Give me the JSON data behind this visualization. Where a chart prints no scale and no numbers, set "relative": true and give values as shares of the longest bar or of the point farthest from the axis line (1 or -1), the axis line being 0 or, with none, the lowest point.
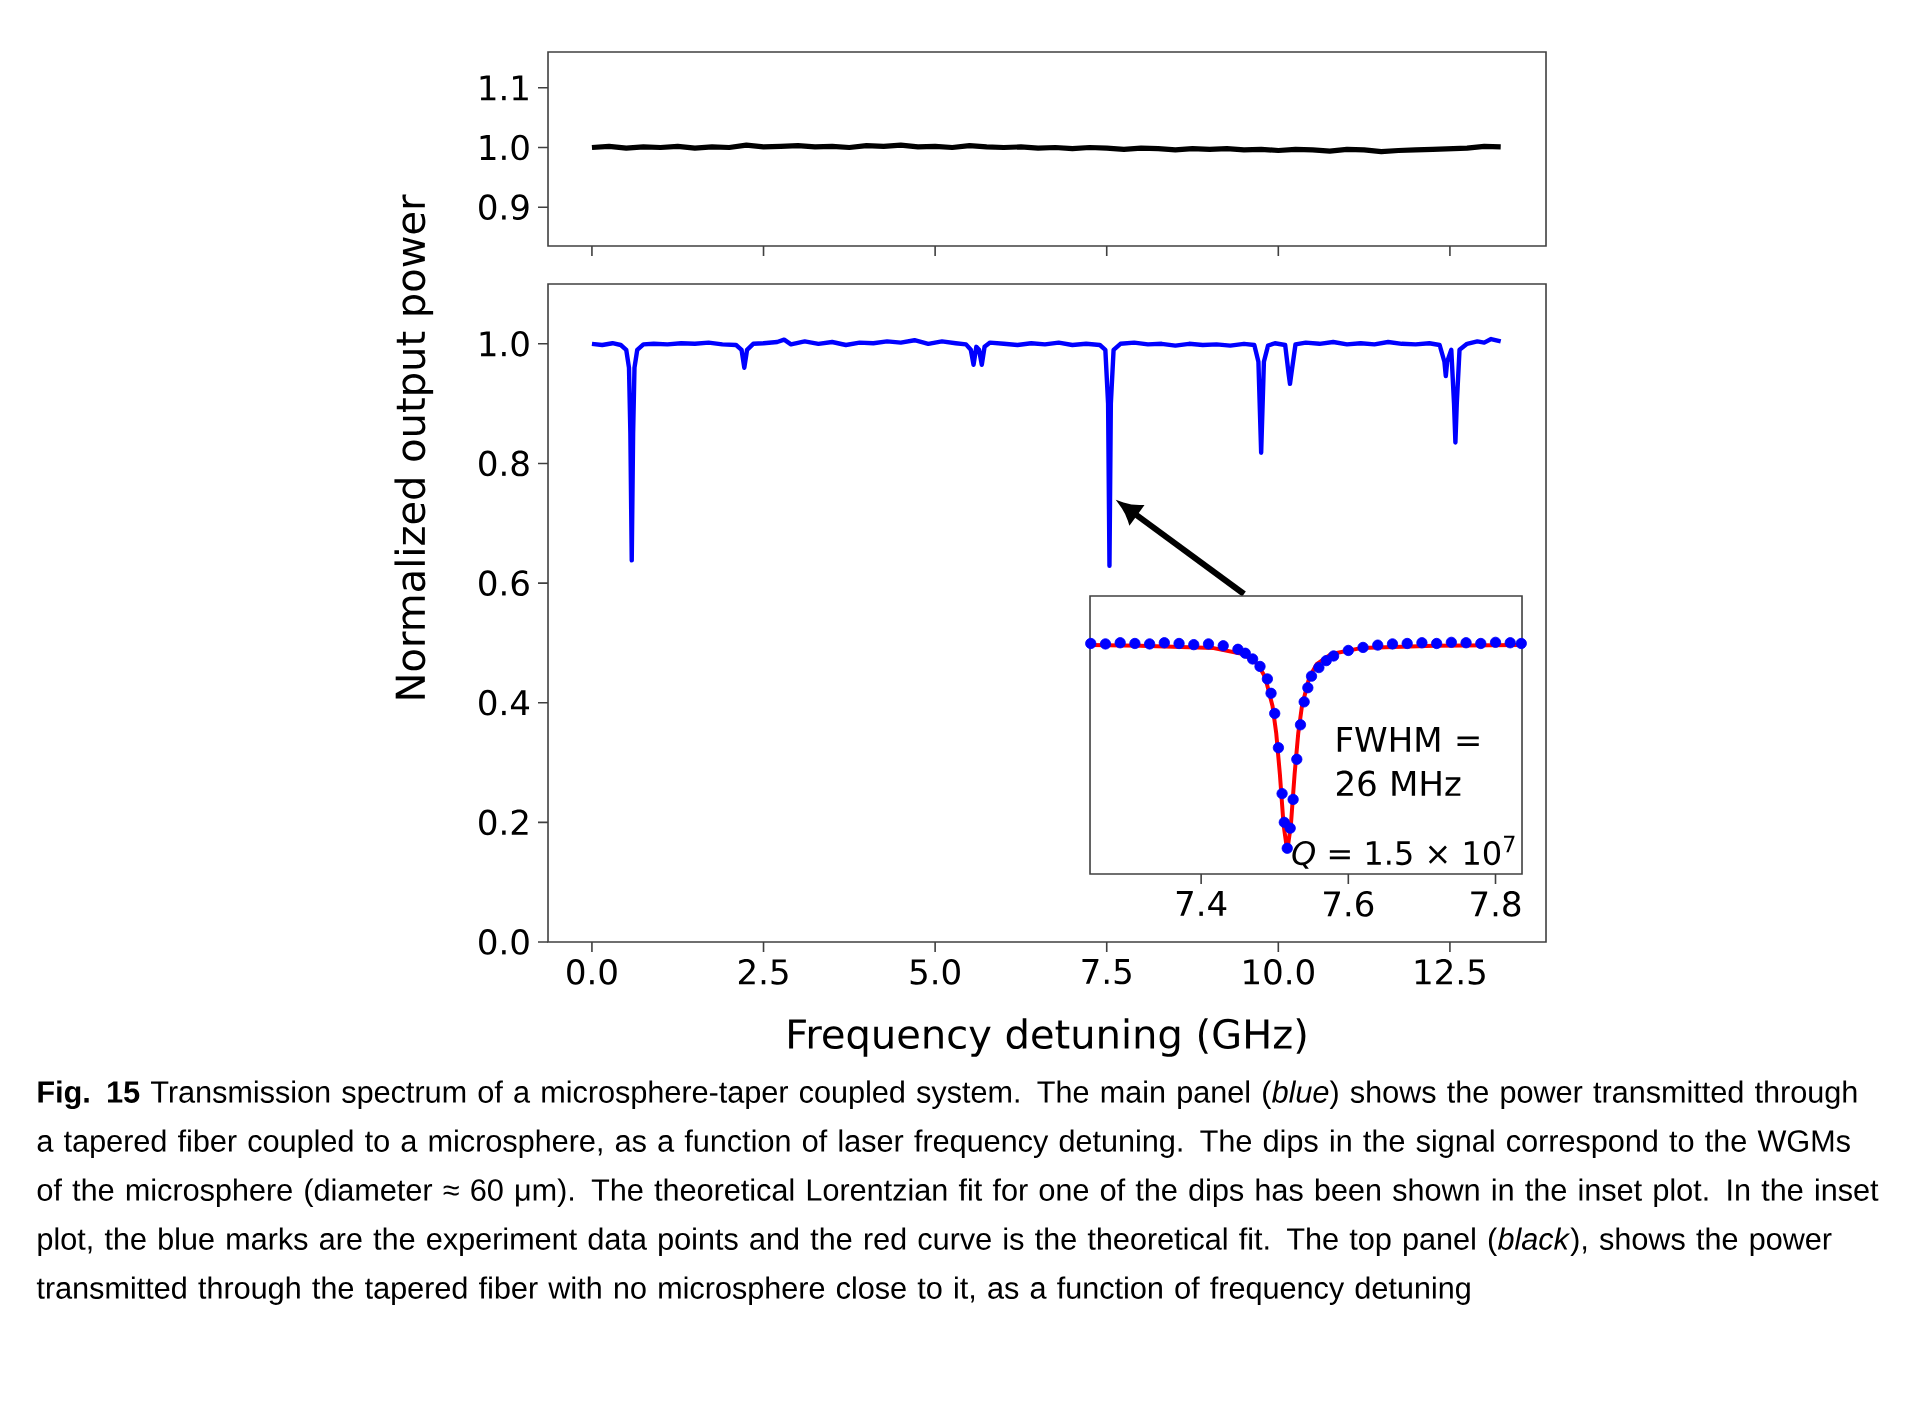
{
  "chart_data": [
    {
      "type": "line",
      "tick_labels": "y",
      "xlim": [
        -0.64,
        13.9
      ],
      "xticks": [
        0,
        2.5,
        5,
        7.5,
        10,
        12.5
      ],
      "ylim": [
        0.835,
        1.16
      ],
      "yticks": [
        {
          "value": 0.9,
          "label": "0.9"
        },
        {
          "value": 1.0,
          "label": "1.0"
        },
        {
          "value": 1.1,
          "label": "1.1"
        }
      ],
      "series": [
        {
          "color": "#000000",
          "x": [
            0,
            0.25,
            0.5,
            0.75,
            1.0,
            1.25,
            1.5,
            1.75,
            2.0,
            2.25,
            2.5,
            2.75,
            3.0,
            3.25,
            3.5,
            3.75,
            4.0,
            4.25,
            4.5,
            4.75,
            5.0,
            5.25,
            5.5,
            5.75,
            6.0,
            6.25,
            6.5,
            6.75,
            7.0,
            7.25,
            7.5,
            7.75,
            8.0,
            8.25,
            8.5,
            8.75,
            9.0,
            9.25,
            9.5,
            9.75,
            10.0,
            10.25,
            10.5,
            10.75,
            11.0,
            11.25,
            11.5,
            11.75,
            12.0,
            12.25,
            12.5,
            12.75,
            13.0,
            13.24
          ],
          "values": [
            1.0,
            1.002,
            0.999,
            1.001,
            1.0,
            1.002,
            0.999,
            1.001,
            1.0,
            1.004,
            1.001,
            1.002,
            1.003,
            1.001,
            1.002,
            1.0,
            1.003,
            1.002,
            1.004,
            1.001,
            1.002,
            1.0,
            1.003,
            1.001,
            1.0,
            1.001,
            0.999,
            1.0,
            0.998,
            1.0,
            0.999,
            0.997,
            0.999,
            0.998,
            0.996,
            0.998,
            0.997,
            0.998,
            0.996,
            0.997,
            0.995,
            0.997,
            0.996,
            0.994,
            0.997,
            0.996,
            0.993,
            0.995,
            0.996,
            0.997,
            0.998,
            0.999,
            1.002,
            1.001
          ]
        }
      ]
    },
    {
      "type": "line",
      "xlabel": "Frequency detuning (GHz)",
      "ylabel": "Normalized output power",
      "xlim": [
        -0.64,
        13.9
      ],
      "xticks": [
        {
          "value": 0,
          "label": "0.0"
        },
        {
          "value": 2.5,
          "label": "2.5"
        },
        {
          "value": 5,
          "label": "5.0"
        },
        {
          "value": 7.5,
          "label": "7.5"
        },
        {
          "value": 10,
          "label": "10.0"
        },
        {
          "value": 12.5,
          "label": "12.5"
        }
      ],
      "ylim": [
        0,
        1.1
      ],
      "yticks": [
        {
          "value": 0,
          "label": "0.0"
        },
        {
          "value": 0.2,
          "label": "0.2"
        },
        {
          "value": 0.4,
          "label": "0.4"
        },
        {
          "value": 0.6,
          "label": "0.6"
        },
        {
          "value": 0.8,
          "label": "0.8"
        },
        {
          "value": 1.0,
          "label": "1.0"
        }
      ],
      "annotations": [
        "**Fig. 15** Transmission spectrum of a microsphere-taper coupled system. The main panel (*blue*) shows the power transmitted through a tapered fiber coupled to a microsphere, as a function of laser frequency detuning. The dips in the signal correspond to the WGMs of the microsphere (diameter ≈ 60 μm). The theoretical Lorentzian fit for one of the dips has been shown in the inset plot. In the inset plot, the blue marks are the experiment data points and the red curve is the theoretical fit. The top panel (*black*), shows the power transmitted through the tapered fiber with no microsphere close to it, as a function of frequency detuning"
      ],
      "series": [
        {
          "color": "#0000ff",
          "x": [
            0.0,
            0.15,
            0.3,
            0.42,
            0.5,
            0.54,
            0.56,
            0.58,
            0.6,
            0.62,
            0.66,
            0.75,
            0.9,
            1.1,
            1.3,
            1.5,
            1.7,
            1.9,
            2.1,
            2.18,
            2.22,
            2.26,
            2.35,
            2.5,
            2.7,
            2.8,
            2.9,
            3.1,
            3.3,
            3.5,
            3.7,
            3.9,
            4.1,
            4.3,
            4.5,
            4.7,
            4.9,
            5.1,
            5.3,
            5.45,
            5.52,
            5.56,
            5.6,
            5.64,
            5.68,
            5.72,
            5.8,
            6.0,
            6.2,
            6.4,
            6.6,
            6.8,
            7.0,
            7.2,
            7.4,
            7.48,
            7.52,
            7.54,
            7.56,
            7.6,
            7.7,
            7.9,
            8.1,
            8.3,
            8.5,
            8.7,
            8.9,
            9.1,
            9.3,
            9.5,
            9.65,
            9.71,
            9.75,
            9.79,
            9.85,
            9.95,
            10.1,
            10.15,
            10.17,
            10.19,
            10.25,
            10.4,
            10.6,
            10.8,
            11.0,
            11.2,
            11.4,
            11.6,
            11.8,
            12.0,
            12.2,
            12.35,
            12.42,
            12.44,
            12.46,
            12.52,
            12.56,
            12.58,
            12.6,
            12.64,
            12.75,
            12.9,
            13.0,
            13.1,
            13.24
          ],
          "values": [
            1.0,
            0.998,
            1.001,
            0.998,
            0.99,
            0.96,
            0.85,
            0.638,
            0.85,
            0.96,
            0.99,
            0.999,
            1.0,
            0.999,
            1.001,
            1.0,
            1.002,
            0.999,
            0.998,
            0.99,
            0.96,
            0.99,
            1.0,
            1.001,
            1.003,
            1.007,
            0.999,
            1.004,
            1.0,
            1.003,
            0.998,
            1.002,
            1.001,
            1.004,
            1.002,
            1.006,
            1.0,
            1.004,
            1.001,
            0.999,
            0.99,
            0.965,
            0.995,
            0.99,
            0.965,
            0.995,
            1.002,
            1.0,
            0.998,
            1.001,
            0.999,
            1.002,
            0.998,
            1.0,
            0.998,
            0.99,
            0.9,
            0.629,
            0.9,
            0.99,
            1.0,
            1.002,
            0.999,
            1.0,
            0.997,
            1.0,
            0.998,
            0.999,
            0.997,
            1.0,
            0.998,
            0.97,
            0.818,
            0.97,
            0.997,
            1.001,
            0.998,
            0.95,
            0.933,
            0.95,
            0.999,
            1.002,
            1.0,
            1.003,
            0.999,
            1.001,
            0.999,
            1.003,
            1.0,
            0.999,
            1.001,
            0.998,
            0.97,
            0.946,
            0.97,
            0.99,
            0.9,
            0.835,
            0.9,
            0.99,
            1.0,
            1.004,
            1.002,
            1.008,
            1.004
          ]
        }
      ]
    },
    {
      "type": "line",
      "relative": true,
      "tick_labels": "x",
      "xlim": [
        7.249,
        7.836
      ],
      "xticks": [
        7.4,
        7.6,
        7.8
      ],
      "annotations": [
        "FWHM = 26 MHz",
        "*Q* = 1.5 × 10$^{7}$"
      ],
      "series": [
        {
          "type": "scatter",
          "marker": "circle",
          "color": "#0000ff",
          "x": [
            7.25,
            7.27,
            7.29,
            7.31,
            7.33,
            7.35,
            7.37,
            7.39,
            7.41,
            7.43,
            7.45,
            7.46,
            7.47,
            7.48,
            7.49,
            7.495,
            7.5,
            7.505,
            7.51,
            7.513,
            7.517,
            7.521,
            7.525,
            7.53,
            7.535,
            7.54,
            7.545,
            7.55,
            7.56,
            7.57,
            7.58,
            7.6,
            7.62,
            7.64,
            7.66,
            7.68,
            7.7,
            7.72,
            7.74,
            7.76,
            7.78,
            7.8,
            7.82,
            7.835
          ],
          "values": [
            0.995,
            0.993,
            0.998,
            0.995,
            0.993,
            0.998,
            0.995,
            0.99,
            0.993,
            0.985,
            0.97,
            0.953,
            0.928,
            0.896,
            0.842,
            0.78,
            0.693,
            0.545,
            0.347,
            0.223,
            0.111,
            0.198,
            0.322,
            0.495,
            0.644,
            0.743,
            0.804,
            0.854,
            0.891,
            0.921,
            0.941,
            0.965,
            0.978,
            0.988,
            0.993,
            0.995,
            0.998,
            0.995,
            1.0,
            0.998,
            0.995,
            1.0,
            0.998,
            0.995
          ]
        },
        {
          "type": "line",
          "color": "#ff0000",
          "x": [
            7.25,
            7.317,
            7.417,
            7.457,
            7.477,
            7.487,
            7.497,
            7.502,
            7.507,
            7.512,
            7.517,
            7.522,
            7.527,
            7.532,
            7.537,
            7.547,
            7.557,
            7.577,
            7.617,
            7.717,
            7.835
          ],
          "values": [
            0.988,
            0.985,
            0.975,
            0.95,
            0.906,
            0.849,
            0.725,
            0.609,
            0.431,
            0.213,
            0.099,
            0.213,
            0.431,
            0.609,
            0.725,
            0.849,
            0.906,
            0.95,
            0.975,
            0.985,
            0.988
          ]
        }
      ]
    }
  ]
}
